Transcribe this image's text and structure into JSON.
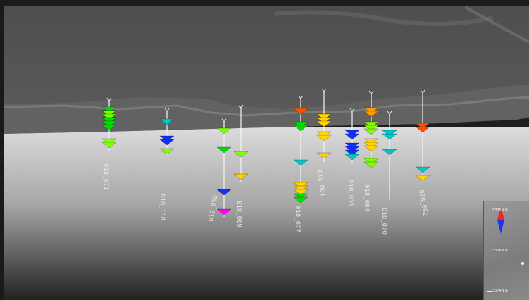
{
  "drillholes": [
    {
      "id": "h1",
      "label": "018_071"
    },
    {
      "id": "h2",
      "label": "018_118"
    },
    {
      "id": "h3",
      "label": "012_059"
    },
    {
      "id": "h4",
      "label": "018_069"
    },
    {
      "id": "h5",
      "label": "018_077"
    },
    {
      "id": "h6",
      "label": "018_061"
    },
    {
      "id": "h7",
      "label": "018_035"
    },
    {
      "id": "h8",
      "label": "018_084"
    },
    {
      "id": "h9",
      "label": "018_070"
    },
    {
      "id": "h10",
      "label": "018_062"
    }
  ],
  "minimap": {
    "ticks": [
      "5378N N",
      "5376N N",
      "5374N N"
    ]
  },
  "colors": {
    "terrain": "#5a5a5a",
    "ground_top": "#d9d9d9",
    "ground_bottom": "#2b2b2b",
    "disk_colors": [
      "#00e000",
      "#7fff00",
      "#ffd400",
      "#ff9a00",
      "#1030ff",
      "#00c8c8",
      "#ff00ff",
      "#ff5000"
    ]
  }
}
